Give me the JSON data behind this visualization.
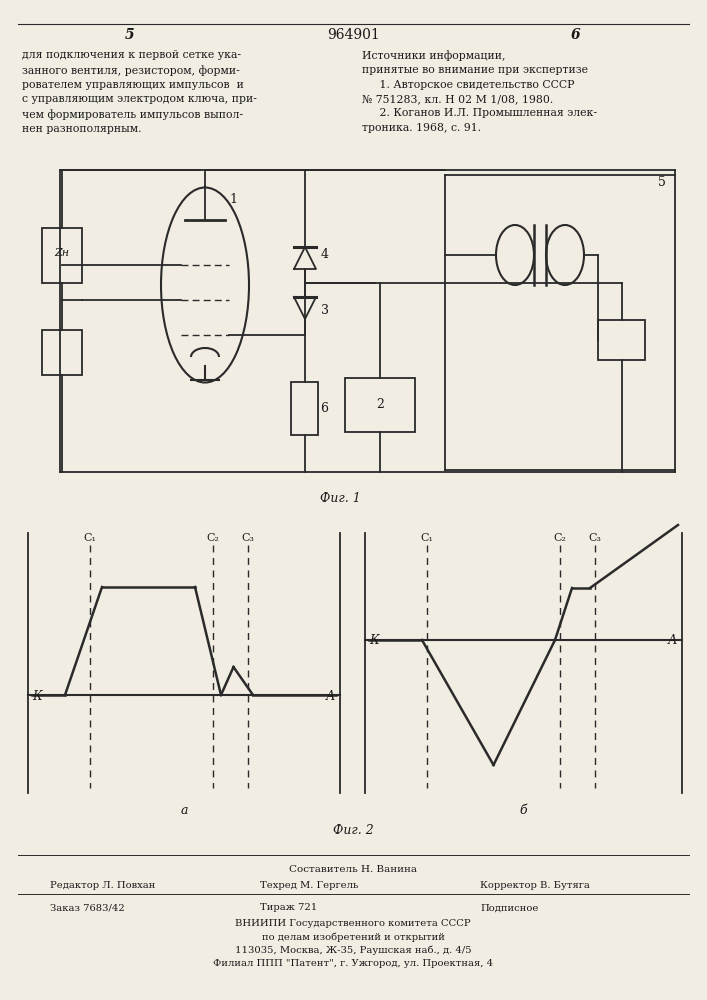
{
  "page_num_left": "5",
  "page_num_center": "964901",
  "page_num_right": "6",
  "text_left": "для подключения к первой сетке ука-\nзанного вентиля, резистором, форми-\nрователем управляющих импульсов  и\nс управляющим электродом ключа, при-\nчем формирователь импульсов выпол-\nнен разнополярным.",
  "text_right": "Источники информации,\nпринятые во внимание при экспертизе\n     1. Авторское свидетельство СССР\n№ 751283, кл. Н 02 М 1/08, 1980.\n     2. Коганов И.Л. Промышленная элек-\nтроника. 1968, с. 91.",
  "fig1_caption": "Фиг. 1",
  "fig2_caption": "Фиг. 2",
  "fig2a_label": "а",
  "fig2b_label": "б",
  "footer_line1": "Составитель Н. Ванина",
  "footer_line2_left": "Редактор Л. Повхан",
  "footer_line2_mid": "Техред М. Гергель",
  "footer_line2_right": "Корректор В. Бутяга",
  "footer_line3_left": "Заказ 7683/42",
  "footer_line3_mid": "Тираж 721",
  "footer_line3_right": "Подписное",
  "footer_line4": "ВНИИПИ Государственного комитета СССР",
  "footer_line5": "по делам изобретений и открытий",
  "footer_line6": "113035, Москва, Ж-35, Раушская наб., д. 4/5",
  "footer_line7": "Филиал ППП \"Патент\", г. Ужгород, ул. Проектная, 4",
  "bg_color": "#f2ede3",
  "line_color": "#2a2a2a",
  "text_color": "#1a1a1a"
}
